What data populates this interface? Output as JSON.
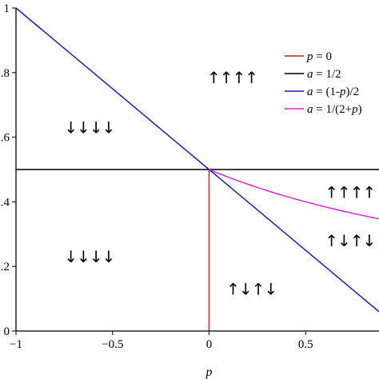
{
  "chart_data": {
    "type": "line",
    "xlabel": "p",
    "ylabel": "",
    "xlim": [
      -1,
      0.88
    ],
    "ylim": [
      0,
      1
    ],
    "x_ticks": [
      -1,
      -0.5,
      0,
      0.5
    ],
    "x_tick_labels": [
      "−1",
      "−0.5",
      "0",
      "0.5"
    ],
    "y_ticks": [
      0,
      0.2,
      0.4,
      0.6,
      0.8,
      1
    ],
    "y_tick_labels": [
      "0",
      ".2",
      ".4",
      ".6",
      ".8",
      "1"
    ],
    "grid": false,
    "legend_position": "top-right",
    "series": [
      {
        "name": "p = 0",
        "label_parts": [
          "p",
          " = 0"
        ],
        "color": "#cc2222",
        "type": "vertical",
        "x": [
          0,
          0
        ],
        "y": [
          0,
          0.5
        ]
      },
      {
        "name": "a = 1/2",
        "label_parts": [
          "a",
          " = 1/2"
        ],
        "color": "#000000",
        "type": "function",
        "func": "half",
        "x_range": [
          -1,
          0.88
        ]
      },
      {
        "name": "a = (1-p)/2",
        "label_parts": [
          "a",
          " = (1-",
          "p",
          ")/2"
        ],
        "color": "#1a1acc",
        "type": "function",
        "func": "one_minus_p_over_2",
        "x_range": [
          -1,
          0.88
        ]
      },
      {
        "name": "a = 1/(2+p)",
        "label_parts": [
          "a",
          " = 1/(2+",
          "p",
          ")"
        ],
        "color": "#dd22dd",
        "type": "function",
        "func": "one_over_2_plus_p",
        "x_range": [
          0,
          0.88
        ]
      }
    ],
    "annotations": [
      {
        "text": "↑↑↑↑",
        "x": 0.12,
        "y": 0.785
      },
      {
        "text": "↓↓↓↓",
        "x": -0.62,
        "y": 0.63
      },
      {
        "text": "↑↑↑↑",
        "x": 0.73,
        "y": 0.43
      },
      {
        "text": "↑↓↑↓",
        "x": 0.73,
        "y": 0.28
      },
      {
        "text": "↓↓↓↓",
        "x": -0.62,
        "y": 0.23
      },
      {
        "text": "↑↓↑↓",
        "x": 0.22,
        "y": 0.13
      }
    ]
  }
}
